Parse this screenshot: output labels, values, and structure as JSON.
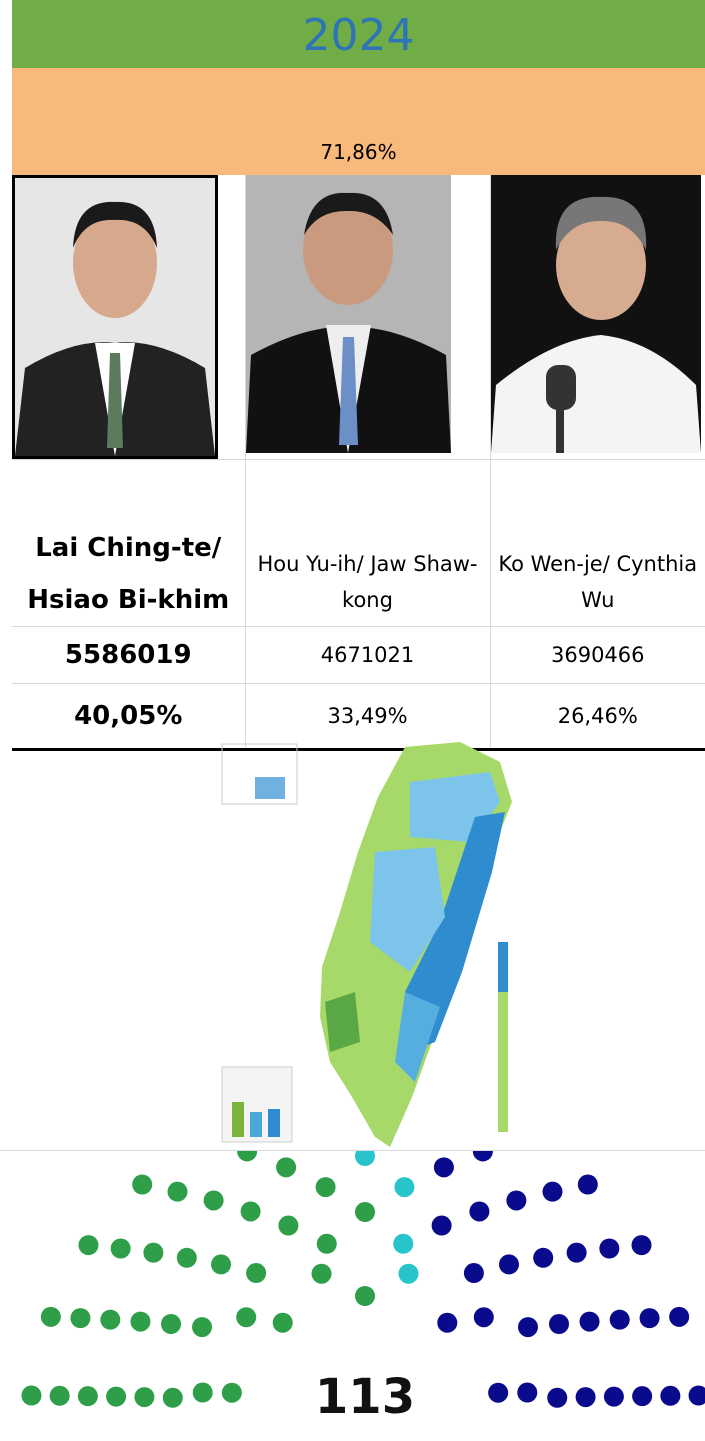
{
  "year": "2024",
  "turnout": "71,86%",
  "candidates": [
    {
      "name": "Lai Ching-te/ Hsiao Bi-khim",
      "votes": 5586019,
      "share": "40,05%"
    },
    {
      "name": "Hou Yu-ih/ Jaw Shaw-kong",
      "votes": 4671021,
      "share": "33,49%"
    },
    {
      "name": "Ko Wen-je/ Cynthia Wu",
      "votes": 3690466,
      "share": "26,46%"
    }
  ],
  "seats": "113"
}
